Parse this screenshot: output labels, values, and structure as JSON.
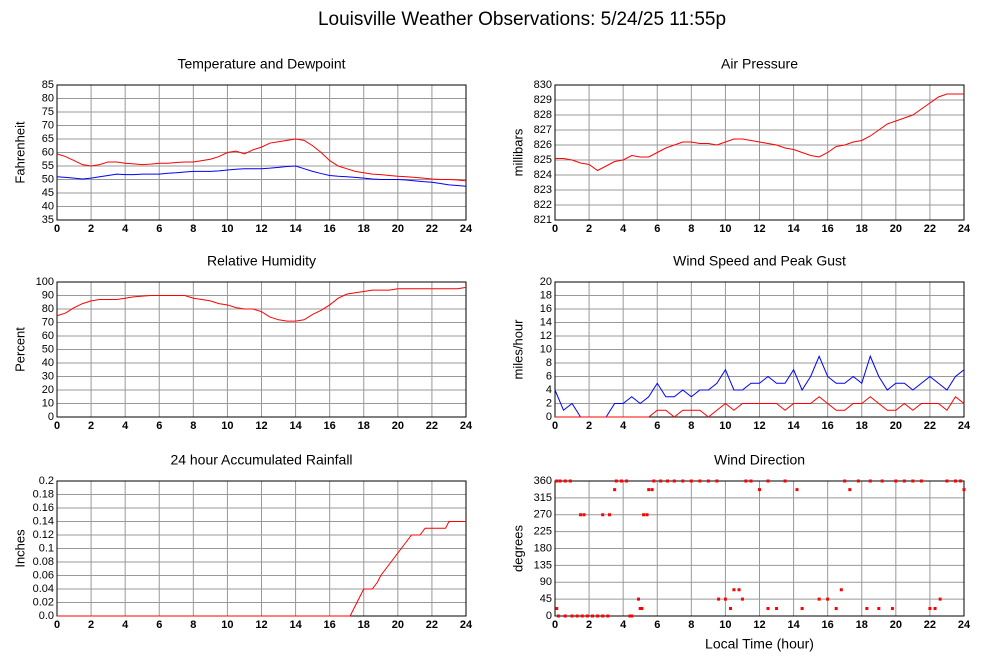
{
  "title": "Louisville Weather Observations: 5/24/25 11:55p",
  "chart_data": [
    {
      "type": "line",
      "title": "Temperature and Dewpoint",
      "ylabel": "Fahrenheit",
      "xlim": [
        0,
        24
      ],
      "xticks": [
        0,
        2,
        4,
        6,
        8,
        10,
        12,
        14,
        16,
        18,
        20,
        22,
        24
      ],
      "ylim": [
        35,
        85
      ],
      "yticks": [
        35,
        40,
        45,
        50,
        55,
        60,
        65,
        70,
        75,
        80,
        85
      ],
      "grid": true,
      "x": [
        0,
        0.5,
        1,
        1.5,
        2,
        2.5,
        3,
        3.5,
        4,
        4.5,
        5,
        5.5,
        6,
        6.5,
        7,
        7.5,
        8,
        8.5,
        9,
        9.5,
        10,
        10.5,
        11,
        11.5,
        12,
        12.5,
        13,
        13.5,
        14,
        14.5,
        15,
        15.5,
        16,
        16.5,
        17,
        17.5,
        18,
        18.5,
        19,
        19.5,
        20,
        20.5,
        21,
        21.5,
        22,
        22.5,
        23,
        23.5,
        24
      ],
      "series": [
        {
          "color": "#ff0000",
          "values": [
            59.5,
            58.5,
            57,
            55.5,
            55,
            55.5,
            56.5,
            56.5,
            56,
            55.8,
            55.5,
            55.7,
            56,
            56,
            56.3,
            56.5,
            56.5,
            57,
            57.5,
            58.5,
            60,
            60.5,
            59.5,
            61,
            62,
            63.5,
            64,
            64.5,
            65,
            64.5,
            62.5,
            60,
            57,
            55,
            54,
            53,
            52.5,
            52,
            51.8,
            51.5,
            51.2,
            51,
            50.8,
            50.5,
            50.2,
            50,
            50,
            49.8,
            49.5
          ]
        },
        {
          "color": "#0000ff",
          "values": [
            51,
            50.8,
            50.5,
            50.2,
            50.5,
            51,
            51.5,
            52,
            51.8,
            51.8,
            52,
            52,
            52,
            52.3,
            52.5,
            52.8,
            53,
            53,
            53,
            53.2,
            53.5,
            53.8,
            54,
            54,
            54,
            54.2,
            54.5,
            54.8,
            55,
            54,
            53,
            52.2,
            51.5,
            51.2,
            51,
            50.8,
            50.5,
            50.2,
            50,
            50,
            50,
            49.8,
            49.5,
            49.2,
            49,
            48.5,
            48,
            47.8,
            47.5
          ]
        }
      ]
    },
    {
      "type": "line",
      "title": "Air Pressure",
      "ylabel": "millibars",
      "xlim": [
        0,
        24
      ],
      "xticks": [
        0,
        2,
        4,
        6,
        8,
        10,
        12,
        14,
        16,
        18,
        20,
        22,
        24
      ],
      "ylim": [
        821,
        830
      ],
      "yticks": [
        821,
        822,
        823,
        824,
        825,
        826,
        827,
        828,
        829,
        830
      ],
      "grid": true,
      "x": [
        0,
        0.5,
        1,
        1.5,
        2,
        2.5,
        3,
        3.5,
        4,
        4.5,
        5,
        5.5,
        6,
        6.5,
        7,
        7.5,
        8,
        8.5,
        9,
        9.5,
        10,
        10.5,
        11,
        11.5,
        12,
        12.5,
        13,
        13.5,
        14,
        14.5,
        15,
        15.5,
        16,
        16.5,
        17,
        17.5,
        18,
        18.5,
        19,
        19.5,
        20,
        20.5,
        21,
        21.5,
        22,
        22.5,
        23,
        23.5,
        24
      ],
      "series": [
        {
          "color": "#ff0000",
          "values": [
            825.1,
            825.1,
            825,
            824.8,
            824.7,
            824.3,
            824.6,
            824.9,
            825,
            825.3,
            825.2,
            825.2,
            825.5,
            825.8,
            826,
            826.2,
            826.2,
            826.1,
            826.1,
            826,
            826.2,
            826.4,
            826.4,
            826.3,
            826.2,
            826.1,
            826,
            825.8,
            825.7,
            825.5,
            825.3,
            825.2,
            825.5,
            825.9,
            826,
            826.2,
            826.3,
            826.6,
            827,
            827.4,
            827.6,
            827.8,
            828,
            828.4,
            828.8,
            829.2,
            829.4,
            829.4,
            829.4
          ]
        }
      ]
    },
    {
      "type": "line",
      "title": "Relative Humidity",
      "ylabel": "Percent",
      "xlim": [
        0,
        24
      ],
      "xticks": [
        0,
        2,
        4,
        6,
        8,
        10,
        12,
        14,
        16,
        18,
        20,
        22,
        24
      ],
      "ylim": [
        0,
        100
      ],
      "yticks": [
        0,
        10,
        20,
        30,
        40,
        50,
        60,
        70,
        80,
        90,
        100
      ],
      "grid": true,
      "x": [
        0,
        0.5,
        1,
        1.5,
        2,
        2.5,
        3,
        3.5,
        4,
        4.5,
        5,
        5.5,
        6,
        6.5,
        7,
        7.5,
        8,
        8.5,
        9,
        9.5,
        10,
        10.5,
        11,
        11.5,
        12,
        12.5,
        13,
        13.5,
        14,
        14.5,
        15,
        15.5,
        16,
        16.5,
        17,
        17.5,
        18,
        18.5,
        19,
        19.5,
        20,
        20.5,
        21,
        21.5,
        22,
        22.5,
        23,
        23.5,
        24
      ],
      "series": [
        {
          "color": "#ff0000",
          "values": [
            75,
            77,
            81,
            84,
            86,
            87,
            87,
            87,
            88,
            89,
            89.5,
            90,
            90,
            90,
            90,
            90,
            88,
            87,
            86,
            84,
            83,
            81,
            80,
            80,
            78,
            74,
            72,
            71,
            71,
            72,
            76,
            79,
            83,
            88,
            91,
            92,
            93,
            94,
            94,
            94,
            95,
            95,
            95,
            95,
            95,
            95,
            95,
            95,
            96
          ]
        }
      ]
    },
    {
      "type": "line",
      "title": "Wind Speed and Peak Gust",
      "ylabel": "miles/hour",
      "xlim": [
        0,
        24
      ],
      "xticks": [
        0,
        2,
        4,
        6,
        8,
        10,
        12,
        14,
        16,
        18,
        20,
        22,
        24
      ],
      "ylim": [
        0,
        20
      ],
      "yticks": [
        0,
        2,
        4,
        6,
        8,
        10,
        12,
        14,
        16,
        18,
        20
      ],
      "grid": true,
      "x": [
        0,
        0.5,
        1,
        1.5,
        2,
        2.5,
        3,
        3.5,
        4,
        4.5,
        5,
        5.5,
        6,
        6.5,
        7,
        7.5,
        8,
        8.5,
        9,
        9.5,
        10,
        10.5,
        11,
        11.5,
        12,
        12.5,
        13,
        13.5,
        14,
        14.5,
        15,
        15.5,
        16,
        16.5,
        17,
        17.5,
        18,
        18.5,
        19,
        19.5,
        20,
        20.5,
        21,
        21.5,
        22,
        22.5,
        23,
        23.5,
        24
      ],
      "series": [
        {
          "color": "#0000ff",
          "values": [
            4,
            1,
            2,
            0,
            0,
            0,
            0,
            2,
            2,
            3,
            2,
            3,
            5,
            3,
            3,
            4,
            3,
            4,
            4,
            5,
            7,
            4,
            4,
            5,
            5,
            6,
            5,
            5,
            7,
            4,
            6,
            9,
            6,
            5,
            5,
            6,
            5,
            9,
            6,
            4,
            5,
            5,
            4,
            5,
            6,
            5,
            4,
            6,
            7
          ]
        },
        {
          "color": "#ff0000",
          "values": [
            0,
            0,
            0,
            0,
            0,
            0,
            0,
            0,
            0,
            0,
            0,
            0,
            1,
            1,
            0,
            1,
            1,
            1,
            0,
            1,
            2,
            1,
            2,
            2,
            2,
            2,
            2,
            1,
            2,
            2,
            2,
            3,
            2,
            1,
            1,
            2,
            2,
            3,
            2,
            1,
            1,
            2,
            1,
            2,
            2,
            2,
            1,
            3,
            2
          ]
        }
      ]
    },
    {
      "type": "line",
      "title": "24 hour Accumulated Rainfall",
      "ylabel": "Inches",
      "xlim": [
        0,
        24
      ],
      "xticks": [
        0,
        2,
        4,
        6,
        8,
        10,
        12,
        14,
        16,
        18,
        20,
        22,
        24
      ],
      "ylim": [
        0,
        0.2
      ],
      "yticks": [
        {
          "value": 0,
          "label": "0.0"
        },
        0.02,
        0.04,
        0.06,
        0.08,
        0.1,
        0.12,
        0.14,
        0.16,
        0.18,
        0.2
      ],
      "grid": true,
      "x": [
        0,
        17.2,
        17.4,
        17.6,
        17.8,
        18,
        18.5,
        18.8,
        19,
        19.3,
        19.6,
        19.9,
        20.2,
        20.5,
        20.8,
        21.3,
        21.6,
        22.8,
        23,
        24
      ],
      "series": [
        {
          "color": "#ff0000",
          "values": [
            0,
            0,
            0.01,
            0.02,
            0.03,
            0.04,
            0.04,
            0.05,
            0.06,
            0.07,
            0.08,
            0.09,
            0.1,
            0.11,
            0.12,
            0.12,
            0.13,
            0.13,
            0.14,
            0.14
          ]
        }
      ]
    },
    {
      "type": "scatter",
      "title": "Wind Direction",
      "ylabel": "degrees",
      "xlabel": "Local Time (hour)",
      "xlim": [
        0,
        24
      ],
      "xticks": [
        0,
        2,
        4,
        6,
        8,
        10,
        12,
        14,
        16,
        18,
        20,
        22,
        24
      ],
      "ylim": [
        0,
        360
      ],
      "yticks": [
        0,
        45,
        90,
        135,
        180,
        225,
        270,
        315,
        360
      ],
      "grid": true,
      "x": [
        0.1,
        0.3,
        0.6,
        0.9,
        0.1,
        0.2,
        0.6,
        1.0,
        1.3,
        1.5,
        1.7,
        1.6,
        1.9,
        2.2,
        2.5,
        2.8,
        3.1,
        2.8,
        3.2,
        3.5,
        3.6,
        3.9,
        4.2,
        4.4,
        4.5,
        4.9,
        5.0,
        5.1,
        5.2,
        5.4,
        5.5,
        5.7,
        5.8,
        6.2,
        6.6,
        7,
        7.5,
        8,
        8.5,
        9,
        9.5,
        9.6,
        10,
        10.3,
        10.5,
        10.8,
        11,
        11.2,
        11.5,
        12,
        12.5,
        12.5,
        13,
        13.5,
        14.2,
        14.5,
        15.5,
        16,
        16.5,
        16.8,
        17,
        17.3,
        17.8,
        18.3,
        18.5,
        19,
        19.2,
        19.8,
        20,
        20.5,
        21,
        21.5,
        22,
        22.3,
        22.6,
        23,
        23.5,
        23.8,
        24
      ],
      "series": [
        {
          "color": "#ff0000",
          "values": [
            360,
            360,
            360,
            360,
            20,
            0,
            0,
            0,
            0,
            270,
            270,
            0,
            0,
            0,
            0,
            0,
            0,
            270,
            270,
            337,
            360,
            360,
            360,
            0,
            0,
            45,
            20,
            20,
            270,
            270,
            337,
            337,
            360,
            360,
            360,
            360,
            360,
            360,
            360,
            360,
            360,
            45,
            45,
            20,
            70,
            70,
            45,
            360,
            360,
            337,
            360,
            20,
            20,
            360,
            337,
            20,
            45,
            45,
            20,
            70,
            360,
            337,
            360,
            20,
            360,
            20,
            360,
            20,
            360,
            360,
            360,
            360,
            20,
            20,
            45,
            360,
            360,
            360,
            337
          ]
        }
      ]
    }
  ]
}
